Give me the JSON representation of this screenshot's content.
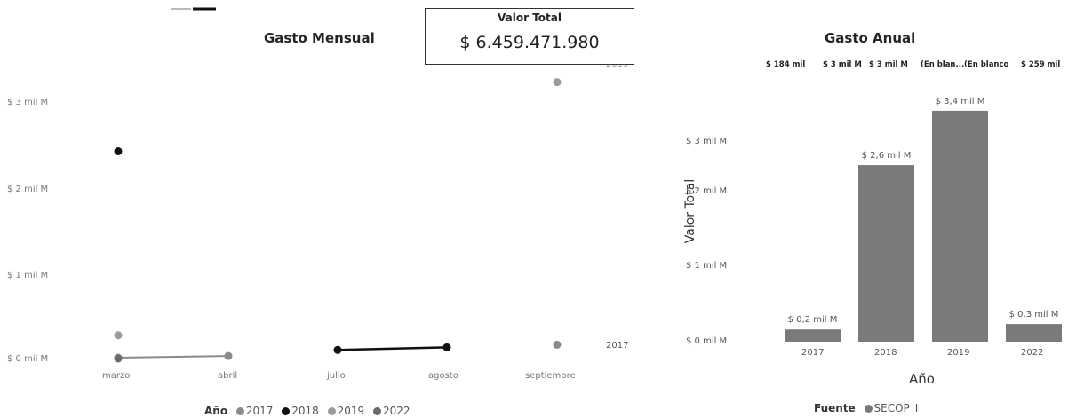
{
  "kpi": {
    "label": "Valor Total",
    "value": "$ 6.459.471.980"
  },
  "colors": {
    "c2017": "#8a8a8a",
    "c2018": "#111111",
    "c2019": "#9a9a9a",
    "c2022": "#6a6a6a",
    "bar": "#7a7a7a"
  },
  "chart_data": [
    {
      "type": "line",
      "title": "Gasto Mensual",
      "xlabel": "",
      "ylabel": "",
      "categories": [
        "marzo",
        "abril",
        "julio",
        "agosto",
        "septiembre"
      ],
      "y_ticks": [
        "$ 0 mil M",
        "$ 1 mil M",
        "$ 2 mil M",
        "$ 3 mil M"
      ],
      "ylim": [
        0,
        3.4
      ],
      "legend": {
        "title": "Año",
        "items": [
          "2017",
          "2018",
          "2019",
          "2022"
        ],
        "placement": "bottom"
      },
      "series": [
        {
          "name": "2017",
          "values": [
            0.01,
            0.03,
            null,
            null,
            0.16
          ]
        },
        {
          "name": "2018",
          "values": [
            2.4,
            null,
            0.1,
            0.13,
            null
          ]
        },
        {
          "name": "2019",
          "values": [
            0.27,
            null,
            null,
            null,
            3.2
          ]
        },
        {
          "name": "2022",
          "values": [
            0.0,
            null,
            null,
            null,
            null
          ]
        }
      ],
      "point_labels": [
        "2019",
        "2017"
      ]
    },
    {
      "type": "bar",
      "title": "Gasto Anual",
      "xlabel": "Año",
      "ylabel": "Valor Total",
      "categories": [
        "2017",
        "2018",
        "2019",
        "2022"
      ],
      "values": [
        0.18,
        2.6,
        3.4,
        0.26
      ],
      "data_labels": [
        "$ 0,2 mil M",
        "$ 2,6 mil M",
        "$ 3,4 mil M",
        "$ 0,3 mil M"
      ],
      "y_ticks": [
        "$ 0 mil M",
        "$ 1 mil M",
        "$ 2 mil M",
        "$ 3 mil M"
      ],
      "ylim": [
        0,
        3.4
      ],
      "top_labels": [
        "$ 184 mil",
        "$ 3 mil M",
        "$ 3 mil M",
        "(En blan...",
        "(En blanco",
        "$ 259 mil"
      ],
      "legend": {
        "title": "Fuente",
        "items": [
          "SECOP_I"
        ],
        "placement": "bottom"
      }
    }
  ]
}
